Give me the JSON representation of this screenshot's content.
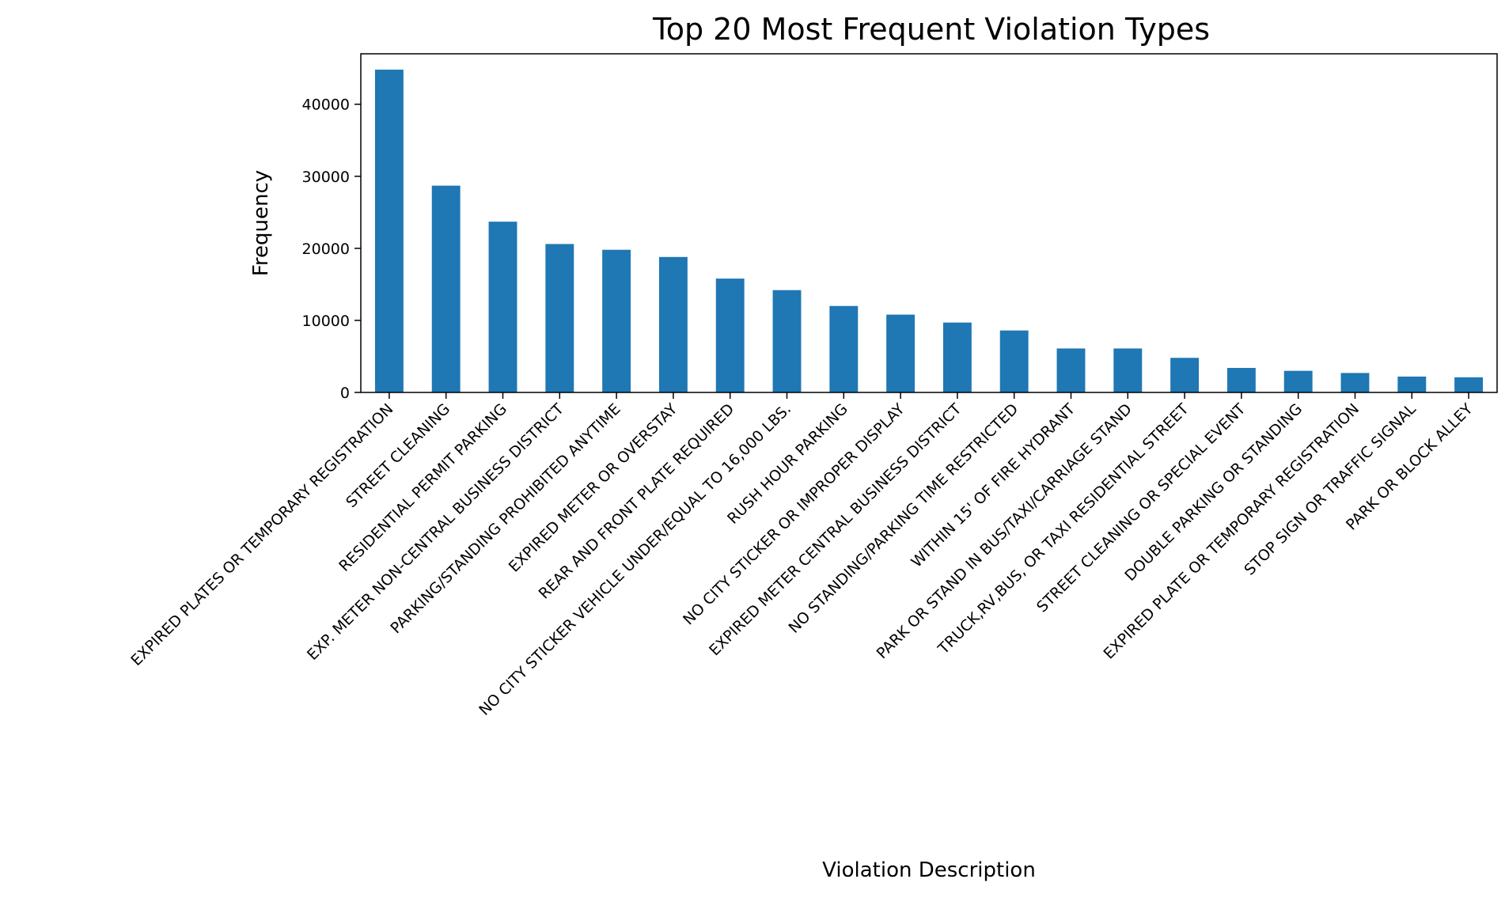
{
  "chart_data": {
    "type": "bar",
    "title": "Top 20 Most Frequent Violation Types",
    "xlabel": "Violation Description",
    "ylabel": "Frequency",
    "ylim": [
      0,
      47000
    ],
    "yticks": [
      0,
      10000,
      20000,
      30000,
      40000
    ],
    "grid": false,
    "legend": "none",
    "bar_color": "#1f77b4",
    "categories": [
      "EXPIRED PLATES OR TEMPORARY REGISTRATION",
      "STREET CLEANING",
      "RESIDENTIAL PERMIT PARKING",
      "EXP. METER NON-CENTRAL BUSINESS DISTRICT",
      "PARKING/STANDING PROHIBITED ANYTIME",
      "EXPIRED METER OR OVERSTAY",
      "REAR AND FRONT PLATE REQUIRED",
      "NO CITY STICKER VEHICLE UNDER/EQUAL TO 16,000 LBS.",
      "RUSH HOUR PARKING",
      "NO CITY STICKER OR IMPROPER DISPLAY",
      "EXPIRED METER CENTRAL BUSINESS DISTRICT",
      "NO STANDING/PARKING TIME RESTRICTED",
      "WITHIN 15' OF FIRE HYDRANT",
      "PARK OR STAND IN BUS/TAXI/CARRIAGE STAND",
      "TRUCK,RV,BUS, OR TAXI RESIDENTIAL STREET",
      "STREET CLEANING OR SPECIAL EVENT",
      "DOUBLE PARKING OR STANDING",
      "EXPIRED PLATE OR TEMPORARY REGISTRATION",
      "STOP SIGN OR TRAFFIC SIGNAL",
      "PARK OR BLOCK ALLEY"
    ],
    "values": [
      44800,
      28700,
      23700,
      20600,
      19800,
      18800,
      15800,
      14200,
      12000,
      10800,
      9700,
      8600,
      6100,
      6100,
      4800,
      3400,
      3000,
      2700,
      2200,
      2100
    ]
  }
}
